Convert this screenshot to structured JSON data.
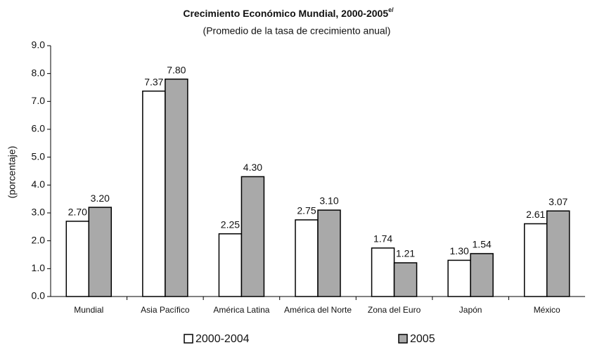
{
  "chart_data": {
    "type": "bar",
    "title": "Crecimiento Económico Mundial, 2000-2005",
    "title_note": "e/",
    "subtitle": "(Promedio de la tasa de crecimiento anual)",
    "y_label": "(porcentaje)",
    "categories": [
      "Mundial",
      "Asia Pacífico",
      "América Latina",
      "América del Norte",
      "Zona del Euro",
      "Japón",
      "México"
    ],
    "series": [
      {
        "name": "2000-2004",
        "color": "#ffffff",
        "values": [
          2.7,
          7.37,
          2.25,
          2.75,
          1.74,
          1.3,
          2.61
        ],
        "value_labels": [
          "2.70",
          "7.37",
          "2.25",
          "2.75",
          "1.74",
          "1.30",
          "2.61"
        ]
      },
      {
        "name": "2005",
        "color": "#a9a9a9",
        "values": [
          3.2,
          7.8,
          4.3,
          3.1,
          1.21,
          1.54,
          3.07
        ],
        "value_labels": [
          "3.20",
          "7.80",
          "4.30",
          "3.10",
          "1.21",
          "1.54",
          "3.07"
        ]
      }
    ],
    "ylim": [
      0,
      9
    ],
    "yticks": [
      {
        "value": 0,
        "label": "0.0"
      },
      {
        "value": 1,
        "label": "1.0"
      },
      {
        "value": 2,
        "label": "2.0"
      },
      {
        "value": 3,
        "label": "3.0"
      },
      {
        "value": 4,
        "label": "4.0"
      },
      {
        "value": 5,
        "label": "5.0"
      },
      {
        "value": 6,
        "label": "6.0"
      },
      {
        "value": 7,
        "label": "7.0"
      },
      {
        "value": 8,
        "label": "8.0"
      },
      {
        "value": 9,
        "label": "9.0"
      }
    ],
    "grid": false,
    "legend": "bottom"
  }
}
